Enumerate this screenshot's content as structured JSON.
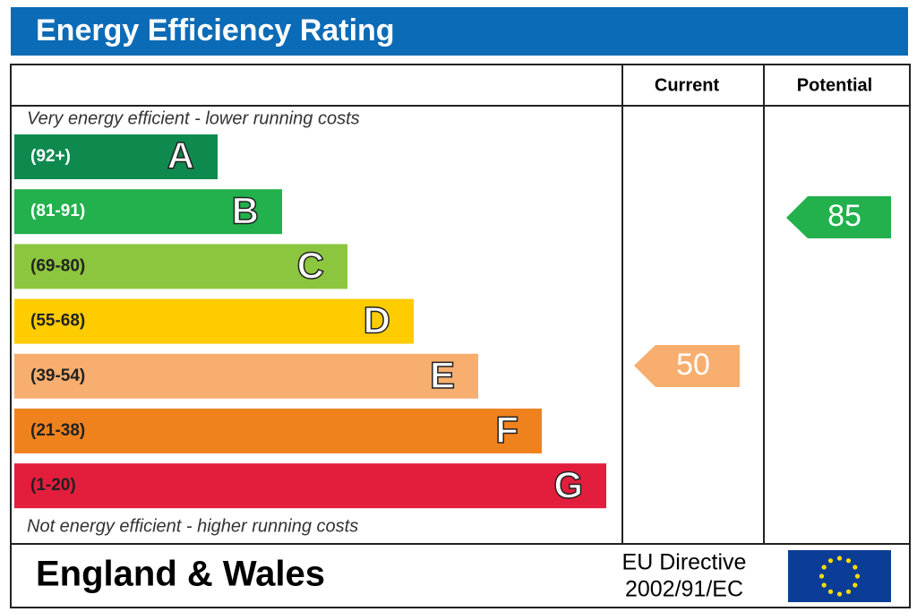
{
  "title": "Energy Efficiency Rating",
  "columns": [
    "Current",
    "Potential"
  ],
  "top_note": "Very energy efficient - lower running costs",
  "bottom_note": "Not energy efficient - higher running costs",
  "bands": [
    {
      "range": "(92+)",
      "letter": "A",
      "color": "#0f8a4f"
    },
    {
      "range": "(81-91)",
      "letter": "B",
      "color": "#22b14c"
    },
    {
      "range": "(69-80)",
      "letter": "C",
      "color": "#8cc63f"
    },
    {
      "range": "(55-68)",
      "letter": "D",
      "color": "#ffcc00"
    },
    {
      "range": "(39-54)",
      "letter": "E",
      "color": "#f7ae6e"
    },
    {
      "range": "(21-38)",
      "letter": "F",
      "color": "#f0821e"
    },
    {
      "range": "(1-20)",
      "letter": "G",
      "color": "#e31d3c"
    }
  ],
  "current": {
    "value": 50,
    "color": "#f7ae6e"
  },
  "potential": {
    "value": 85,
    "color": "#22b14c"
  },
  "footer": {
    "region": "England & Wales",
    "directive": [
      "EU Directive",
      "2002/91/EC"
    ]
  }
}
